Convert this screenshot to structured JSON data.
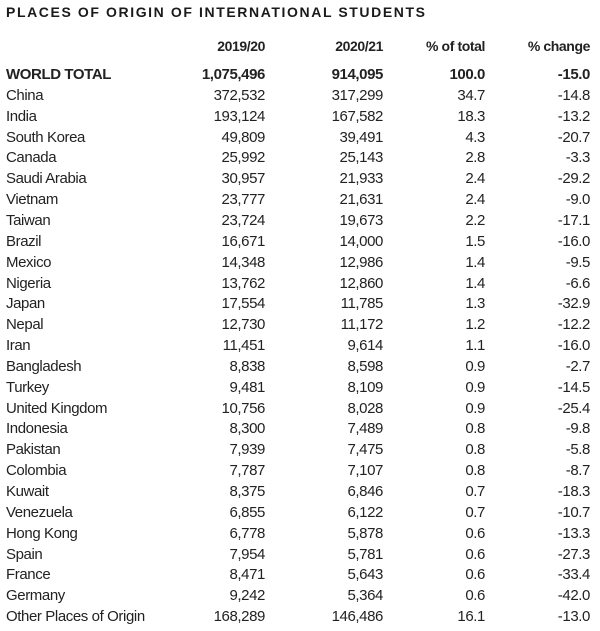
{
  "header": {
    "title": "PLACES OF ORIGIN OF INTERNATIONAL STUDENTS"
  },
  "table": {
    "columns": [
      "2019/20",
      "2020/21",
      "% of total",
      "% change"
    ],
    "rows": [
      [
        "WORLD TOTAL",
        "1,075,496",
        "914,095",
        "100.0",
        "-15.0"
      ],
      [
        "China",
        "372,532",
        "317,299",
        "34.7",
        "-14.8"
      ],
      [
        "India",
        "193,124",
        "167,582",
        "18.3",
        "-13.2"
      ],
      [
        "South Korea",
        "49,809",
        "39,491",
        "4.3",
        "-20.7"
      ],
      [
        "Canada",
        "25,992",
        "25,143",
        "2.8",
        "-3.3"
      ],
      [
        "Saudi Arabia",
        "30,957",
        "21,933",
        "2.4",
        "-29.2"
      ],
      [
        "Vietnam",
        "23,777",
        "21,631",
        "2.4",
        "-9.0"
      ],
      [
        "Taiwan",
        "23,724",
        "19,673",
        "2.2",
        "-17.1"
      ],
      [
        "Brazil",
        "16,671",
        "14,000",
        "1.5",
        "-16.0"
      ],
      [
        "Mexico",
        "14,348",
        "12,986",
        "1.4",
        "-9.5"
      ],
      [
        "Nigeria",
        "13,762",
        "12,860",
        "1.4",
        "-6.6"
      ],
      [
        "Japan",
        "17,554",
        "11,785",
        "1.3",
        "-32.9"
      ],
      [
        "Nepal",
        "12,730",
        "11,172",
        "1.2",
        "-12.2"
      ],
      [
        "Iran",
        "11,451",
        "9,614",
        "1.1",
        "-16.0"
      ],
      [
        "Bangladesh",
        "8,838",
        "8,598",
        "0.9",
        "-2.7"
      ],
      [
        "Turkey",
        "9,481",
        "8,109",
        "0.9",
        "-14.5"
      ],
      [
        "United Kingdom",
        "10,756",
        "8,028",
        "0.9",
        "-25.4"
      ],
      [
        "Indonesia",
        "8,300",
        "7,489",
        "0.8",
        "-9.8"
      ],
      [
        "Pakistan",
        "7,939",
        "7,475",
        "0.8",
        "-5.8"
      ],
      [
        "Colombia",
        "7,787",
        "7,107",
        "0.8",
        "-8.7"
      ],
      [
        "Kuwait",
        "8,375",
        "6,846",
        "0.7",
        "-18.3"
      ],
      [
        "Venezuela",
        "6,855",
        "6,122",
        "0.7",
        "-10.7"
      ],
      [
        "Hong Kong",
        "6,778",
        "5,878",
        "0.6",
        "-13.3"
      ],
      [
        "Spain",
        "7,954",
        "5,781",
        "0.6",
        "-27.3"
      ],
      [
        "France",
        "8,471",
        "5,643",
        "0.6",
        "-33.4"
      ],
      [
        "Germany",
        "9,242",
        "5,364",
        "0.6",
        "-42.0"
      ],
      [
        "Other Places of Origin",
        "168,289",
        "146,486",
        "16.1",
        "-13.0"
      ]
    ]
  }
}
